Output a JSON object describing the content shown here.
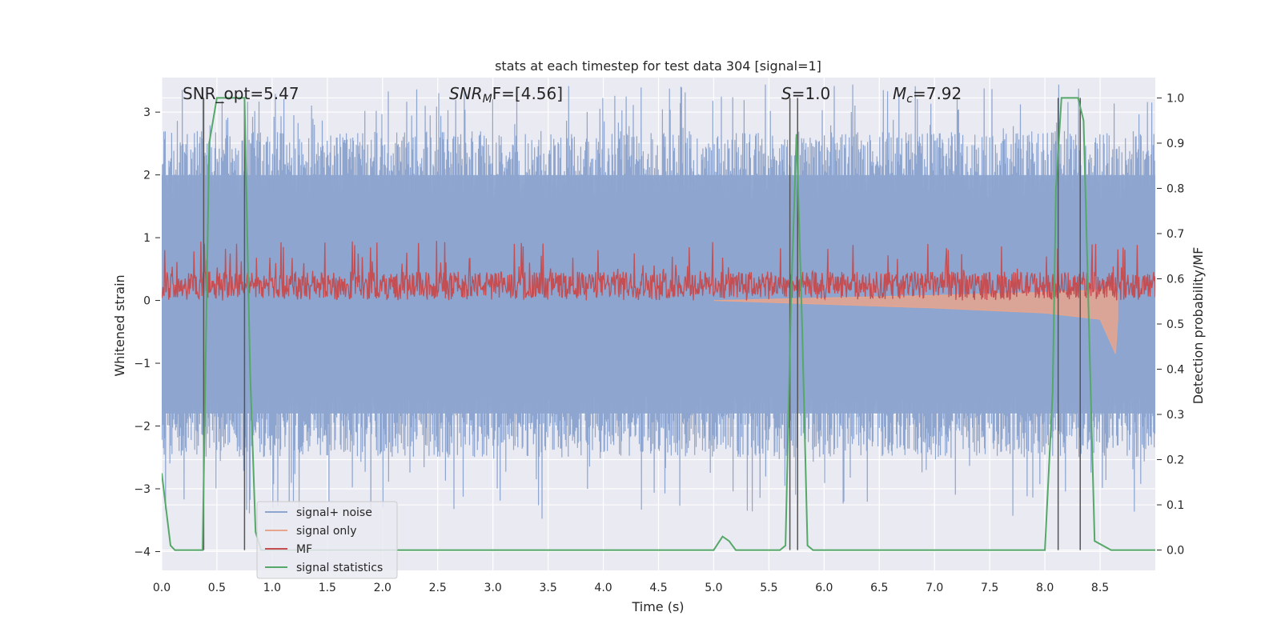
{
  "chart_data": {
    "type": "line",
    "title": "stats at each timestep for test data 304 [signal=1]",
    "xlabel": "Time (s)",
    "ylabel": "Whitened strain",
    "ylabel_right": "Detection probability/MF",
    "xlim": [
      0.0,
      9.0
    ],
    "ylim": [
      -4.3,
      3.55
    ],
    "ylim_right": [
      -0.045,
      1.045
    ],
    "x_ticks": [
      "0.0",
      "0.5",
      "1.0",
      "1.5",
      "2.0",
      "2.5",
      "3.0",
      "3.5",
      "4.0",
      "4.5",
      "5.0",
      "5.5",
      "6.0",
      "6.5",
      "7.0",
      "7.5",
      "8.0",
      "8.5"
    ],
    "y_ticks": [
      "3",
      "2",
      "1",
      "0",
      "−1",
      "−2",
      "−3",
      "−4"
    ],
    "y_ticks_right": [
      "1.0",
      "0.9",
      "0.8",
      "0.7",
      "0.6",
      "0.5",
      "0.4",
      "0.3",
      "0.2",
      "0.1",
      "0.0"
    ],
    "grid": true,
    "legend_position": "lower-left",
    "annotations": {
      "snr_opt": "SNR_opt=5.47",
      "snr_mf_sym": "SNR",
      "snr_mf_sub": "M",
      "snr_mf_rest": "F=[4.56]",
      "s_sym": "S",
      "s_rest": "=1.0",
      "mc_sym": "M",
      "mc_sub": "c",
      "mc_rest": "=7.92"
    },
    "series": [
      {
        "name": "signal+ noise",
        "color": "#8da5cf",
        "axis": "left",
        "noise_band": [
          -1.8,
          2.0
        ],
        "peak_range": [
          -4.0,
          3.45
        ]
      },
      {
        "name": "signal only",
        "color": "#e8a58d",
        "axis": "left",
        "x": [
          5.0,
          6.0,
          7.0,
          8.0,
          8.5,
          8.64,
          8.66
        ],
        "upper": [
          0.0,
          0.04,
          0.08,
          0.13,
          0.17,
          0.25,
          0.1
        ],
        "lower": [
          0.0,
          -0.06,
          -0.12,
          -0.2,
          -0.3,
          -0.85,
          -0.3
        ]
      },
      {
        "name": "MF",
        "color": "#c44e52",
        "axis": "left",
        "baseline": 0.25,
        "band": [
          0.0,
          0.6
        ],
        "peak_max": 0.95
      },
      {
        "name": "signal statistics",
        "color": "#55a868",
        "axis": "right",
        "x": [
          0.0,
          0.08,
          0.12,
          0.2,
          0.3,
          0.37,
          0.43,
          0.5,
          0.6,
          0.7,
          0.75,
          0.8,
          0.85,
          0.9,
          1.0,
          2.0,
          3.0,
          4.0,
          4.5,
          5.0,
          5.08,
          5.14,
          5.2,
          5.5,
          5.6,
          5.65,
          5.7,
          5.75,
          5.8,
          5.85,
          5.9,
          6.0,
          7.0,
          8.0,
          8.07,
          8.1,
          8.15,
          8.2,
          8.3,
          8.35,
          8.45,
          8.6,
          9.0
        ],
        "y": [
          0.17,
          0.01,
          0.0,
          0.0,
          0.0,
          0.0,
          0.9,
          1.0,
          1.0,
          1.0,
          1.0,
          0.4,
          0.04,
          0.0,
          0.0,
          0.0,
          0.0,
          0.0,
          0.0,
          0.0,
          0.03,
          0.02,
          0.0,
          0.0,
          0.0,
          0.01,
          0.55,
          0.92,
          0.5,
          0.01,
          0.0,
          0.0,
          0.0,
          0.0,
          0.35,
          0.8,
          1.0,
          1.0,
          1.0,
          0.95,
          0.02,
          0.0,
          0.0
        ]
      }
    ],
    "vlines_x": [
      0.38,
      0.75,
      5.69,
      5.76,
      8.12,
      8.32
    ],
    "vline_color": "#555555",
    "colors": {
      "plot_bg": "#eaeaf2",
      "grid": "#ffffff"
    }
  }
}
